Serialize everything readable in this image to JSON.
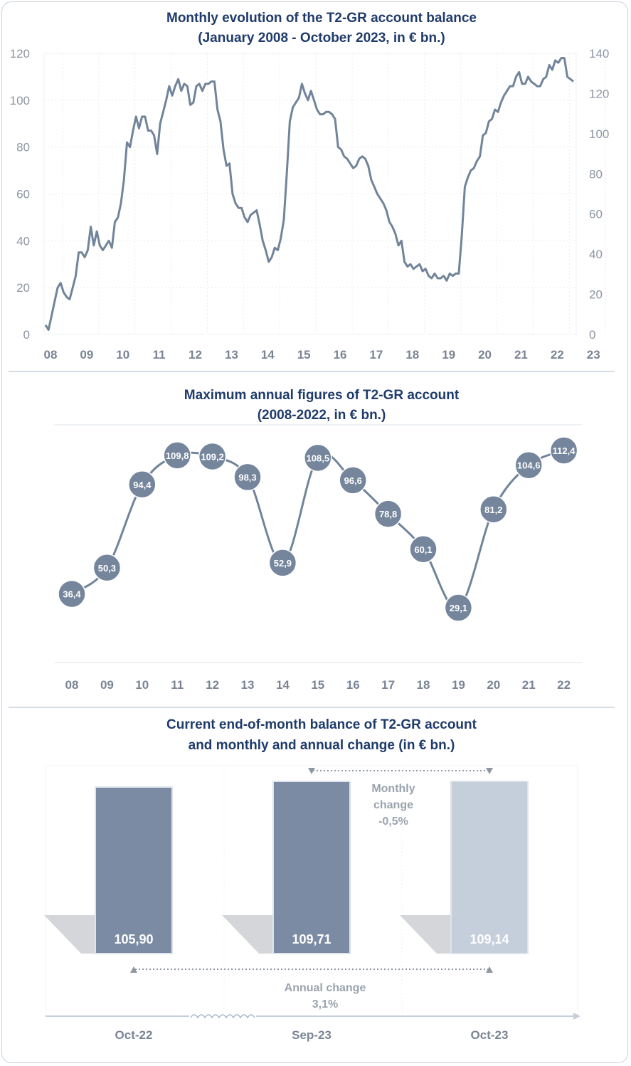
{
  "chart_data": [
    {
      "type": "line",
      "title": [
        "Monthly evolution of the T2-GR account balance",
        "(January 2008 - October 2023, in € bn.)"
      ],
      "x_ticks": [
        "08",
        "09",
        "10",
        "11",
        "12",
        "13",
        "14",
        "15",
        "16",
        "17",
        "18",
        "19",
        "20",
        "21",
        "22",
        "23"
      ],
      "y_left_ticks": [
        "0",
        "20",
        "40",
        "60",
        "80",
        "100",
        "120"
      ],
      "y_right_ticks": [
        "0",
        "20",
        "40",
        "60",
        "80",
        "100",
        "120",
        "140"
      ],
      "ylim_left": [
        0,
        120
      ],
      "ylim_right": [
        0,
        140
      ],
      "series": [
        {
          "values": [
            4,
            2,
            8,
            14,
            20,
            22,
            18,
            16,
            15,
            20,
            25,
            35,
            35,
            33,
            36,
            46,
            38,
            44,
            38,
            36,
            38,
            40,
            37,
            48,
            50,
            56,
            66,
            82,
            80,
            87,
            93,
            88,
            93,
            93,
            87,
            87,
            85,
            77,
            90,
            95,
            100,
            106,
            102,
            106,
            109,
            104,
            107,
            106,
            98,
            99,
            106,
            107,
            104,
            107,
            107,
            108,
            108,
            96,
            91,
            79,
            72,
            73,
            60,
            56,
            54,
            54,
            50,
            48,
            51,
            52,
            53,
            47,
            40,
            36,
            31,
            33,
            37,
            36,
            41,
            49,
            69,
            91,
            97,
            99,
            101,
            107,
            103,
            100,
            104,
            100,
            96,
            94,
            94,
            95,
            95,
            94,
            92,
            80,
            79,
            76,
            75,
            73,
            71,
            72,
            75,
            76,
            75,
            72,
            66,
            63,
            60,
            58,
            56,
            53,
            48,
            46,
            43,
            38,
            40,
            31,
            29,
            30,
            28,
            29,
            30,
            27,
            28,
            25,
            24,
            26,
            24,
            24,
            25,
            23,
            26,
            25,
            26,
            26,
            42,
            63,
            67,
            70,
            71,
            74,
            76,
            85,
            86,
            91,
            92,
            96,
            95,
            99,
            102,
            104,
            106,
            106,
            110,
            112,
            107,
            107,
            110,
            108,
            107,
            106,
            106,
            109,
            110,
            115,
            113,
            117,
            116,
            118,
            118,
            110,
            109,
            108
          ]
        }
      ]
    },
    {
      "type": "line",
      "title": [
        "Maximum annual figures of T2-GR account",
        "(2008-2022, in € bn.)"
      ],
      "categories": [
        "08",
        "09",
        "10",
        "11",
        "12",
        "13",
        "14",
        "15",
        "16",
        "17",
        "18",
        "19",
        "20",
        "21",
        "22"
      ],
      "values": [
        36.4,
        50.3,
        94.4,
        109.8,
        109.2,
        98.3,
        52.9,
        108.5,
        96.6,
        78.8,
        60.1,
        29.1,
        81.2,
        104.6,
        112.4
      ],
      "labels": [
        "36,4",
        "50,3",
        "94,4",
        "109,8",
        "109,2",
        "98,3",
        "52,9",
        "108,5",
        "96,6",
        "78,8",
        "60,1",
        "29,1",
        "81,2",
        "104,6",
        "112,4"
      ]
    },
    {
      "type": "bar",
      "title": [
        "Current end-of-month balance of T2-GR account",
        "and monthly and annual change (in € bn.)"
      ],
      "categories": [
        "Oct-22",
        "Sep-23",
        "Oct-23"
      ],
      "values": [
        105.9,
        109.71,
        109.14
      ],
      "labels": [
        "105,90",
        "109,71",
        "109,14"
      ],
      "colors": [
        "#7a8ba3",
        "#7a8ba3",
        "#c5cedb"
      ],
      "annotations": {
        "monthly": [
          "Monthly",
          "change",
          "-0,5%"
        ],
        "annual": [
          "Annual change",
          "3,1%"
        ]
      }
    }
  ],
  "colors": {
    "line": "#72849a",
    "title": "#1f3b6b",
    "frame": "#c9d1dd"
  }
}
